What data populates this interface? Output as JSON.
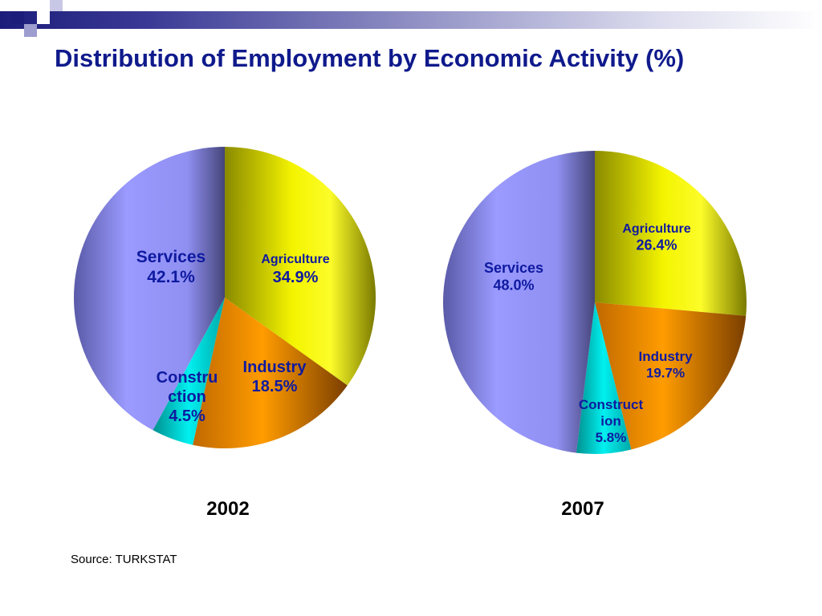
{
  "slide": {
    "title": "Distribution of Employment by Economic Activity (%)",
    "source": "Source:  TURKSTAT"
  },
  "chart_data": [
    {
      "type": "pie",
      "year_label": "2002",
      "slices": [
        {
          "category": "Agriculture",
          "value": 34.9,
          "label_lines": [
            "Agriculture",
            "34.9%"
          ],
          "color": "#f2f200"
        },
        {
          "category": "Industry",
          "value": 18.5,
          "label_lines": [
            "Industry",
            "18.5%"
          ],
          "color": "#ff9900"
        },
        {
          "category": "Construction",
          "value": 4.5,
          "label_lines": [
            "Constru",
            "ction",
            "4.5%"
          ],
          "color": "#00e8e8"
        },
        {
          "category": "Services",
          "value": 42.1,
          "label_lines": [
            "Services",
            "42.1%"
          ],
          "color": "#9999ff"
        }
      ]
    },
    {
      "type": "pie",
      "year_label": "2007",
      "slices": [
        {
          "category": "Agriculture",
          "value": 26.4,
          "label_lines": [
            "Agriculture",
            "26.4%"
          ],
          "color": "#f2f200"
        },
        {
          "category": "Industry",
          "value": 19.7,
          "label_lines": [
            "Industry",
            "19.7%"
          ],
          "color": "#ff9900"
        },
        {
          "category": "Construction",
          "value": 5.8,
          "label_lines": [
            "Construct",
            "ion",
            "5.8%"
          ],
          "color": "#00e8e8"
        },
        {
          "category": "Services",
          "value": 48.0,
          "label_lines": [
            "Services",
            "48.0%"
          ],
          "color": "#9999ff"
        }
      ]
    }
  ],
  "colors": {
    "title": "#0f1a8c",
    "label_text": "#0f1aa0",
    "deco_dark": "#1c1c7a",
    "deco_light": "#9d9dcf"
  }
}
